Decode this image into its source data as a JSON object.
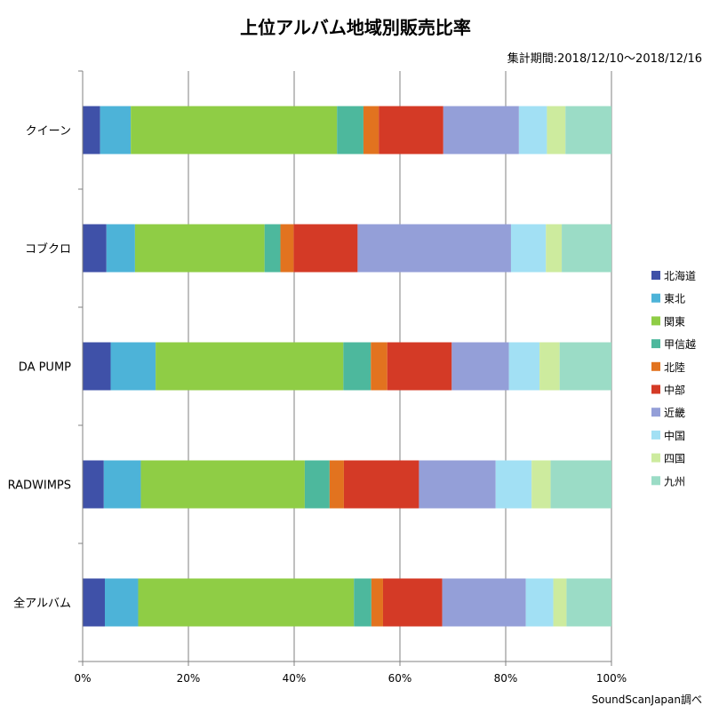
{
  "chart_data": {
    "type": "bar",
    "orientation": "horizontal",
    "stacked": true,
    "percent_stacked": true,
    "title": "上位アルバム地域別販売比率",
    "subtitle": "集計期間:2018/12/10～2018/12/16",
    "source": "SoundScanJapan調べ",
    "categories": [
      "クイーン",
      "コブクロ",
      "DA PUMP",
      "RADWIMPS",
      "全アルバム"
    ],
    "x_ticks": [
      "0%",
      "20%",
      "40%",
      "60%",
      "80%",
      "100%"
    ],
    "xlim": [
      0,
      100
    ],
    "grid": true,
    "legend_position": "right",
    "series": [
      {
        "name": "北海道",
        "color": "#3f51a8",
        "values": [
          3.3,
          4.5,
          5.3,
          4.0,
          4.2
        ]
      },
      {
        "name": "東北",
        "color": "#4db3d8",
        "values": [
          5.8,
          5.4,
          8.5,
          7.0,
          6.3
        ]
      },
      {
        "name": "関東",
        "color": "#8fcd45",
        "values": [
          39.0,
          24.5,
          35.5,
          31.0,
          40.8
        ]
      },
      {
        "name": "甲信越",
        "color": "#4db89d",
        "values": [
          5.0,
          3.0,
          5.2,
          4.7,
          3.3
        ]
      },
      {
        "name": "北陸",
        "color": "#e2731f",
        "values": [
          2.9,
          2.5,
          3.1,
          2.7,
          2.2
        ]
      },
      {
        "name": "中部",
        "color": "#d43a26",
        "values": [
          12.2,
          12.1,
          12.2,
          14.2,
          11.2
        ]
      },
      {
        "name": "近畿",
        "color": "#949fd8",
        "values": [
          14.3,
          29.0,
          10.8,
          14.5,
          15.8
        ]
      },
      {
        "name": "中国",
        "color": "#a2e0f4",
        "values": [
          5.3,
          6.6,
          5.8,
          6.8,
          5.2
        ]
      },
      {
        "name": "四国",
        "color": "#cdeb9e",
        "values": [
          3.5,
          3.0,
          3.8,
          3.6,
          2.5
        ]
      },
      {
        "name": "九州",
        "color": "#9bdcc6",
        "values": [
          8.7,
          9.4,
          9.8,
          11.5,
          8.5
        ]
      }
    ]
  }
}
